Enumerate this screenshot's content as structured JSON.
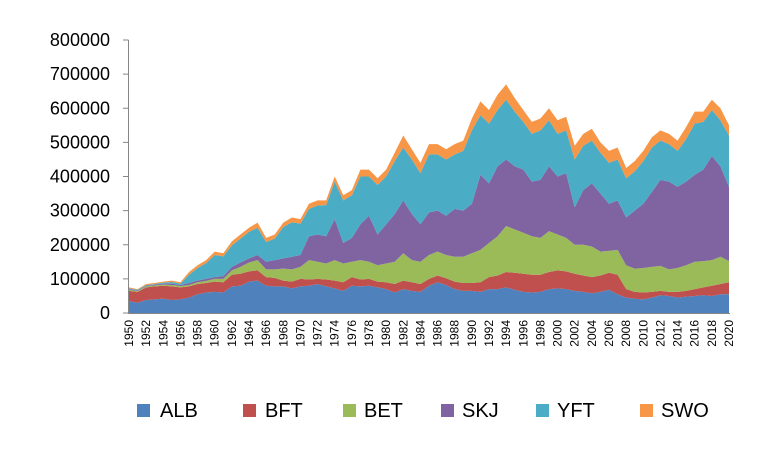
{
  "chart_data": {
    "type": "area",
    "stacked": true,
    "grid": false,
    "legend": "bottom",
    "xlim": [
      1950,
      2020
    ],
    "ylim": [
      0,
      800000
    ],
    "y_tick_labels": [
      "0",
      "100000",
      "200000",
      "300000",
      "400000",
      "500000",
      "600000",
      "700000",
      "800000"
    ],
    "x_tick_labels": [
      "1950",
      "1952",
      "1954",
      "1956",
      "1958",
      "1960",
      "1962",
      "1964",
      "1966",
      "1968",
      "1970",
      "1972",
      "1974",
      "1976",
      "1978",
      "1980",
      "1982",
      "1984",
      "1986",
      "1988",
      "1990",
      "1992",
      "1994",
      "1996",
      "1998",
      "2000",
      "2002",
      "2004",
      "2006",
      "2008",
      "2010",
      "2012",
      "2014",
      "2016",
      "2018",
      "2020"
    ],
    "x": [
      1950,
      1951,
      1952,
      1953,
      1954,
      1955,
      1956,
      1957,
      1958,
      1959,
      1960,
      1961,
      1962,
      1963,
      1964,
      1965,
      1966,
      1967,
      1968,
      1969,
      1970,
      1971,
      1972,
      1973,
      1974,
      1975,
      1976,
      1977,
      1978,
      1979,
      1980,
      1981,
      1982,
      1983,
      1984,
      1985,
      1986,
      1987,
      1988,
      1989,
      1990,
      1991,
      1992,
      1993,
      1994,
      1995,
      1996,
      1997,
      1998,
      1999,
      2000,
      2001,
      2002,
      2003,
      2004,
      2005,
      2006,
      2007,
      2008,
      2009,
      2010,
      2011,
      2012,
      2013,
      2014,
      2015,
      2016,
      2017,
      2018,
      2019,
      2020
    ],
    "series": [
      {
        "name": "ALB",
        "color": "#4F81BD",
        "values": [
          35000,
          30000,
          38000,
          40000,
          42000,
          38000,
          40000,
          45000,
          55000,
          60000,
          62000,
          60000,
          78000,
          80000,
          92000,
          95000,
          80000,
          78000,
          78000,
          72000,
          78000,
          80000,
          85000,
          78000,
          72000,
          65000,
          80000,
          78000,
          80000,
          75000,
          70000,
          60000,
          70000,
          65000,
          62000,
          80000,
          90000,
          82000,
          70000,
          65000,
          65000,
          62000,
          70000,
          70000,
          75000,
          68000,
          62000,
          60000,
          62000,
          70000,
          72000,
          70000,
          65000,
          62000,
          58000,
          62000,
          68000,
          55000,
          45000,
          42000,
          40000,
          45000,
          52000,
          50000,
          45000,
          48000,
          50000,
          52000,
          50000,
          55000,
          55000
        ]
      },
      {
        "name": "BFT",
        "color": "#C0504D",
        "values": [
          30000,
          32000,
          37000,
          38000,
          38000,
          40000,
          35000,
          33000,
          30000,
          28000,
          30000,
          30000,
          34000,
          35000,
          30000,
          30000,
          25000,
          25000,
          17000,
          20000,
          22000,
          18000,
          15000,
          20000,
          23000,
          25000,
          25000,
          20000,
          20000,
          17000,
          20000,
          25000,
          25000,
          25000,
          23000,
          20000,
          20000,
          20000,
          22000,
          23000,
          23000,
          28000,
          35000,
          40000,
          45000,
          50000,
          53000,
          52000,
          50000,
          50000,
          53000,
          52000,
          50000,
          48000,
          47000,
          48000,
          50000,
          57000,
          25000,
          20000,
          20000,
          17000,
          13000,
          12000,
          17000,
          17000,
          20000,
          23000,
          30000,
          30000,
          35000
        ]
      },
      {
        "name": "BET",
        "color": "#9BBB59",
        "values": [
          3000,
          2000,
          3000,
          3000,
          3000,
          4000,
          4000,
          4000,
          5000,
          6000,
          8000,
          10000,
          13000,
          20000,
          26000,
          30000,
          23000,
          25000,
          35000,
          36000,
          35000,
          57000,
          50000,
          47000,
          60000,
          55000,
          45000,
          57000,
          50000,
          48000,
          55000,
          65000,
          80000,
          65000,
          65000,
          70000,
          70000,
          68000,
          73000,
          77000,
          87000,
          95000,
          100000,
          115000,
          135000,
          127000,
          120000,
          113000,
          108000,
          120000,
          105000,
          98000,
          85000,
          90000,
          90000,
          70000,
          64000,
          73000,
          70000,
          68000,
          72000,
          73000,
          73000,
          66000,
          70000,
          75000,
          80000,
          77000,
          75000,
          80000,
          62000
        ]
      },
      {
        "name": "SKJ",
        "color": "#8064A2",
        "values": [
          2000,
          2000,
          2000,
          2000,
          3000,
          4000,
          3000,
          6000,
          5000,
          6000,
          5000,
          8000,
          10000,
          13000,
          12000,
          15000,
          22000,
          27000,
          30000,
          37000,
          35000,
          70000,
          80000,
          80000,
          120000,
          60000,
          70000,
          105000,
          135000,
          90000,
          115000,
          140000,
          155000,
          135000,
          110000,
          125000,
          120000,
          115000,
          140000,
          135000,
          145000,
          220000,
          175000,
          205000,
          195000,
          185000,
          185000,
          160000,
          170000,
          190000,
          170000,
          190000,
          110000,
          160000,
          185000,
          170000,
          138000,
          145000,
          140000,
          170000,
          188000,
          220000,
          252000,
          257000,
          238000,
          245000,
          255000,
          268000,
          305000,
          265000,
          218000
        ]
      },
      {
        "name": "YFT",
        "color": "#4BACC6",
        "values": [
          2000,
          2000,
          2000,
          2000,
          3000,
          5000,
          4000,
          24000,
          37000,
          46000,
          65000,
          58000,
          63000,
          70000,
          78000,
          80000,
          58000,
          63000,
          92000,
          101000,
          92000,
          80000,
          85000,
          91000,
          110000,
          125000,
          125000,
          140000,
          115000,
          145000,
          140000,
          155000,
          155000,
          160000,
          150000,
          170000,
          165000,
          165000,
          160000,
          175000,
          215000,
          175000,
          175000,
          165000,
          175000,
          160000,
          140000,
          140000,
          145000,
          135000,
          125000,
          125000,
          140000,
          130000,
          125000,
          120000,
          120000,
          120000,
          115000,
          115000,
          125000,
          130000,
          115000,
          110000,
          105000,
          125000,
          150000,
          140000,
          135000,
          135000,
          150000
        ]
      },
      {
        "name": "SWO",
        "color": "#F79646",
        "values": [
          3000,
          2000,
          3000,
          3000,
          3000,
          4000,
          4000,
          8000,
          8000,
          9000,
          10000,
          9000,
          12000,
          12000,
          12000,
          15000,
          12000,
          12000,
          13000,
          14000,
          13000,
          15000,
          15000,
          14000,
          15000,
          15000,
          15000,
          20000,
          20000,
          20000,
          20000,
          25000,
          35000,
          30000,
          30000,
          30000,
          30000,
          30000,
          30000,
          30000,
          35000,
          40000,
          40000,
          45000,
          45000,
          40000,
          35000,
          35000,
          35000,
          35000,
          40000,
          40000,
          40000,
          35000,
          35000,
          30000,
          35000,
          35000,
          30000,
          30000,
          30000,
          30000,
          30000,
          30000,
          30000,
          35000,
          35000,
          30000,
          30000,
          35000,
          30000
        ]
      }
    ]
  }
}
